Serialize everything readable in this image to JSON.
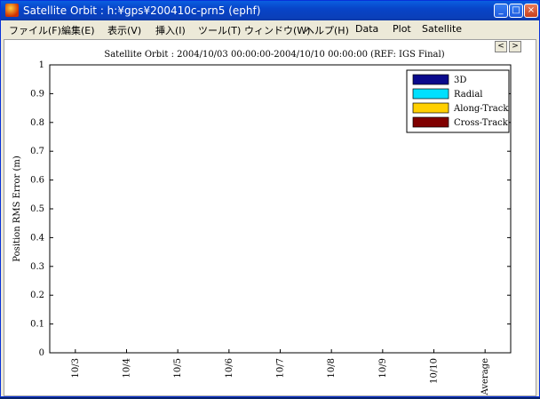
{
  "window": {
    "title": "Satellite Orbit : h:¥gps¥200410c-prn5 (ephf)"
  },
  "menu": [
    {
      "label": "ファイル(F)"
    },
    {
      "label": "編集(E)"
    },
    {
      "label": "表示(V)"
    },
    {
      "label": "挿入(I)"
    },
    {
      "label": "ツール(T)"
    },
    {
      "label": "ウィンドウ(W)"
    },
    {
      "label": "ヘルプ(H)"
    },
    {
      "label": "Data"
    },
    {
      "label": "Plot"
    },
    {
      "label": "Satellite"
    }
  ],
  "nav": {
    "prev_label": "<",
    "next_label": ">"
  },
  "colors": {
    "3D": "#0a0a8c",
    "Radial": "#00e0ff",
    "Along-Track": "#ffd000",
    "Cross-Track": "#800000"
  },
  "chart_data": {
    "type": "bar",
    "title": "Satellite Orbit : 2004/10/03 00:00:00-2004/10/10 00:00:00 (REF: IGS Final)",
    "xlabel": "",
    "ylabel": "Position RMS Error (m)",
    "ylim": [
      0,
      1
    ],
    "yticks": [
      "0",
      "0.1",
      "0.2",
      "0.3",
      "0.4",
      "0.5",
      "0.6",
      "0.7",
      "0.8",
      "0.9",
      "1"
    ],
    "grid": true,
    "legend_position": "top-right",
    "categories": [
      "10/3",
      "10/4",
      "10/5",
      "10/6",
      "10/7",
      "10/8",
      "10/9",
      "10/10",
      "Average"
    ],
    "series": [
      {
        "name": "3D",
        "values": [
          0.065,
          0.063,
          0.07,
          0.064,
          0.064,
          0.064,
          0.07,
          null,
          0.066
        ]
      },
      {
        "name": "Radial",
        "values": [
          0.022,
          0.021,
          0.025,
          0.02,
          0.021,
          0.022,
          0.022,
          null,
          0.023
        ]
      },
      {
        "name": "Along-Track",
        "values": [
          0.046,
          0.048,
          0.052,
          0.048,
          0.048,
          0.046,
          0.054,
          null,
          0.048
        ]
      },
      {
        "name": "Cross-Track",
        "values": [
          0.035,
          0.036,
          0.035,
          0.034,
          0.036,
          0.036,
          0.036,
          null,
          0.036
        ]
      }
    ]
  }
}
